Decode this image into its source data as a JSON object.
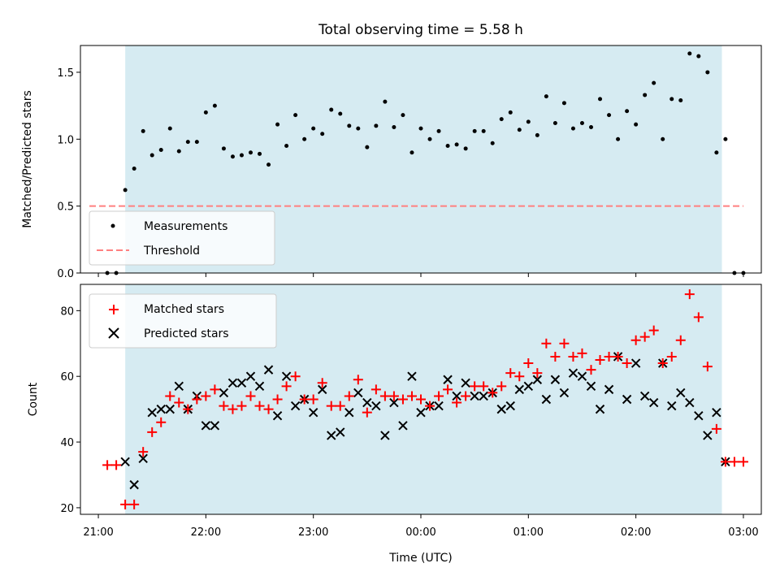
{
  "chart_data": [
    {
      "type": "scatter",
      "title": "Total observing time = 5.58 h",
      "xlabel": "",
      "ylabel": "Matched/Predicted stars",
      "xlim": [
        "20:50",
        "03:10"
      ],
      "ylim": [
        0,
        1.7
      ],
      "yticks": [
        0.0,
        0.5,
        1.0,
        1.5
      ],
      "ytick_labels": [
        "0.0",
        "0.5",
        "1.0",
        "1.5"
      ],
      "grid": false,
      "legend_position": "lower-left",
      "shaded_span": [
        "21:15",
        "02:48"
      ],
      "shaded_color": "#add8e6",
      "threshold": 0.5,
      "series": [
        {
          "name": "Measurements",
          "marker": "dot",
          "color": "#000000",
          "x": [
            "21:05",
            "21:10",
            "21:15",
            "21:20",
            "21:25",
            "21:30",
            "21:35",
            "21:40",
            "21:45",
            "21:50",
            "21:55",
            "22:00",
            "22:05",
            "22:10",
            "22:15",
            "22:20",
            "22:25",
            "22:30",
            "22:35",
            "22:40",
            "22:45",
            "22:50",
            "22:55",
            "23:00",
            "23:05",
            "23:10",
            "23:15",
            "23:20",
            "23:25",
            "23:30",
            "23:35",
            "23:40",
            "23:45",
            "23:50",
            "23:55",
            "00:00",
            "00:05",
            "00:10",
            "00:15",
            "00:20",
            "00:25",
            "00:30",
            "00:35",
            "00:40",
            "00:45",
            "00:50",
            "00:55",
            "01:00",
            "01:05",
            "01:10",
            "01:15",
            "01:20",
            "01:25",
            "01:30",
            "01:35",
            "01:40",
            "01:45",
            "01:50",
            "01:55",
            "02:00",
            "02:05",
            "02:10",
            "02:15",
            "02:20",
            "02:25",
            "02:30",
            "02:35",
            "02:40",
            "02:45",
            "02:50",
            "02:55",
            "03:00"
          ],
          "y": [
            0.0,
            0.0,
            0.62,
            0.78,
            1.06,
            0.88,
            0.92,
            1.08,
            0.91,
            0.98,
            0.98,
            1.2,
            1.25,
            0.93,
            0.87,
            0.88,
            0.9,
            0.89,
            0.81,
            1.11,
            0.95,
            1.18,
            1.0,
            1.08,
            1.04,
            1.22,
            1.19,
            1.1,
            1.08,
            0.94,
            1.1,
            1.28,
            1.09,
            1.18,
            0.9,
            1.08,
            1.0,
            1.06,
            0.95,
            0.96,
            0.93,
            1.06,
            1.06,
            0.97,
            1.15,
            1.2,
            1.07,
            1.13,
            1.03,
            1.32,
            1.12,
            1.27,
            1.08,
            1.12,
            1.09,
            1.3,
            1.18,
            1.0,
            1.21,
            1.11,
            1.33,
            1.42,
            1.0,
            1.3,
            1.29,
            1.64,
            1.62,
            1.5,
            0.9,
            1.0,
            0.0,
            0.0
          ]
        },
        {
          "name": "Threshold",
          "marker": "dashed-line",
          "color": "#ff8080",
          "x": [
            "20:55",
            "03:00"
          ],
          "y": [
            0.5,
            0.5
          ]
        }
      ]
    },
    {
      "type": "scatter",
      "title": "",
      "xlabel": "Time (UTC)",
      "ylabel": "Count",
      "xlim": [
        "20:50",
        "03:10"
      ],
      "ylim": [
        18,
        88
      ],
      "xticks": [
        "21:00",
        "22:00",
        "23:00",
        "00:00",
        "01:00",
        "02:00",
        "03:00"
      ],
      "yticks": [
        20,
        40,
        60,
        80
      ],
      "ytick_labels": [
        "20",
        "40",
        "60",
        "80"
      ],
      "grid": false,
      "legend_position": "upper-left",
      "shaded_span": [
        "21:15",
        "02:48"
      ],
      "shaded_color": "#add8e6",
      "series": [
        {
          "name": "Matched stars",
          "marker": "plus",
          "color": "#ff0000",
          "x": [
            "21:05",
            "21:10",
            "21:15",
            "21:20",
            "21:25",
            "21:30",
            "21:35",
            "21:40",
            "21:45",
            "21:50",
            "21:55",
            "22:00",
            "22:05",
            "22:10",
            "22:15",
            "22:20",
            "22:25",
            "22:30",
            "22:35",
            "22:40",
            "22:45",
            "22:50",
            "22:55",
            "23:00",
            "23:05",
            "23:10",
            "23:15",
            "23:20",
            "23:25",
            "23:30",
            "23:35",
            "23:40",
            "23:45",
            "23:50",
            "23:55",
            "00:00",
            "00:05",
            "00:10",
            "00:15",
            "00:20",
            "00:25",
            "00:30",
            "00:35",
            "00:40",
            "00:45",
            "00:50",
            "00:55",
            "01:00",
            "01:05",
            "01:10",
            "01:15",
            "01:20",
            "01:25",
            "01:30",
            "01:35",
            "01:40",
            "01:45",
            "01:50",
            "01:55",
            "02:00",
            "02:05",
            "02:10",
            "02:15",
            "02:20",
            "02:25",
            "02:30",
            "02:35",
            "02:40",
            "02:45",
            "02:50",
            "02:55",
            "03:00"
          ],
          "y": [
            33,
            33,
            21,
            21,
            37,
            43,
            46,
            54,
            52,
            50,
            53,
            54,
            56,
            51,
            50,
            51,
            54,
            51,
            50,
            53,
            57,
            60,
            53,
            53,
            58,
            51,
            51,
            54,
            59,
            49,
            56,
            54,
            54,
            53,
            54,
            53,
            51,
            54,
            56,
            52,
            54,
            57,
            57,
            55,
            57,
            61,
            60,
            64,
            61,
            70,
            66,
            70,
            66,
            67,
            62,
            65,
            66,
            66,
            64,
            71,
            72,
            74,
            64,
            66,
            71,
            85,
            78,
            63,
            44,
            34,
            34,
            34
          ]
        },
        {
          "name": "Predicted stars",
          "marker": "x",
          "color": "#000000",
          "x": [
            "21:15",
            "21:20",
            "21:25",
            "21:30",
            "21:35",
            "21:40",
            "21:45",
            "21:50",
            "21:55",
            "22:00",
            "22:05",
            "22:10",
            "22:15",
            "22:20",
            "22:25",
            "22:30",
            "22:35",
            "22:40",
            "22:45",
            "22:50",
            "22:55",
            "23:00",
            "23:05",
            "23:10",
            "23:15",
            "23:20",
            "23:25",
            "23:30",
            "23:35",
            "23:40",
            "23:45",
            "23:50",
            "23:55",
            "00:00",
            "00:05",
            "00:10",
            "00:15",
            "00:20",
            "00:25",
            "00:30",
            "00:35",
            "00:40",
            "00:45",
            "00:50",
            "00:55",
            "01:00",
            "01:05",
            "01:10",
            "01:15",
            "01:20",
            "01:25",
            "01:30",
            "01:35",
            "01:40",
            "01:45",
            "01:50",
            "01:55",
            "02:00",
            "02:05",
            "02:10",
            "02:15",
            "02:20",
            "02:25",
            "02:30",
            "02:35",
            "02:40",
            "02:45",
            "02:50"
          ],
          "y": [
            34,
            27,
            35,
            49,
            50,
            50,
            57,
            50,
            54,
            45,
            45,
            55,
            58,
            58,
            60,
            57,
            62,
            48,
            60,
            51,
            53,
            49,
            56,
            42,
            43,
            49,
            55,
            52,
            51,
            42,
            52,
            45,
            60,
            49,
            51,
            51,
            59,
            54,
            58,
            54,
            54,
            55,
            50,
            51,
            56,
            57,
            59,
            53,
            59,
            55,
            61,
            60,
            57,
            50,
            56,
            66,
            53,
            64,
            54,
            52,
            64,
            51,
            55,
            52,
            48,
            42,
            49,
            34
          ]
        }
      ]
    }
  ]
}
